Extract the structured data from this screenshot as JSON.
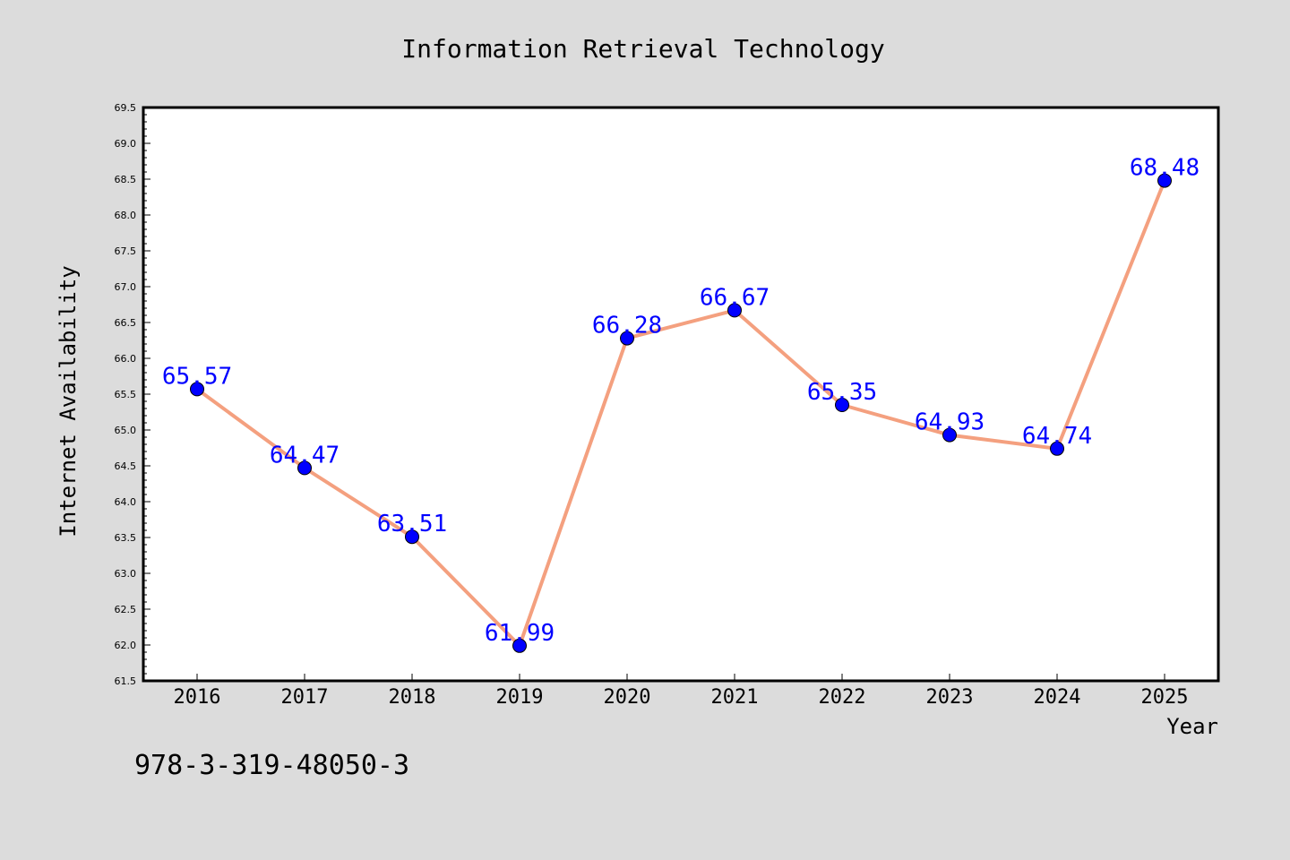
{
  "footer_text": "978-3-319-48050-3",
  "colors": {
    "page_background": "#dcdcdc",
    "plot_background": "#ffffff",
    "line": "#f4a07f",
    "marker": "#0000ff",
    "point_label": "#0000ff"
  },
  "chart_data": {
    "type": "line",
    "title": "Information Retrieval Technology",
    "xlabel": "Year",
    "ylabel": "Internet Availability",
    "categories": [
      "2016",
      "2017",
      "2018",
      "2019",
      "2020",
      "2021",
      "2022",
      "2023",
      "2024",
      "2025"
    ],
    "values": [
      65.57,
      64.47,
      63.51,
      61.99,
      66.28,
      66.67,
      65.35,
      64.93,
      64.74,
      68.48
    ],
    "point_labels": [
      "65.57",
      "64.47",
      "63.51",
      "61.99",
      "66.28",
      "66.67",
      "65.35",
      "64.93",
      "64.74",
      "68.48"
    ],
    "ylim": [
      61.5,
      69.5
    ],
    "yticks": [
      "61.5",
      "62.0",
      "62.5",
      "63.0",
      "63.5",
      "64.0",
      "64.5",
      "65.0",
      "65.5",
      "66.0",
      "66.5",
      "67.0",
      "67.5",
      "68.0",
      "68.5",
      "69.0",
      "69.5"
    ],
    "grid": false,
    "legend": "none"
  }
}
